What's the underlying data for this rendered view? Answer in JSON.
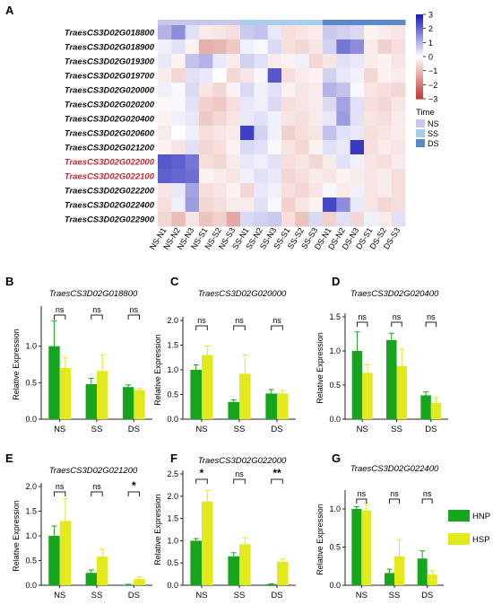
{
  "panel_labels": [
    "A",
    "B",
    "C",
    "D",
    "E",
    "F",
    "G"
  ],
  "chart_data": [
    {
      "type": "heatmap",
      "panel": "A",
      "rows": [
        "TraesCS3D02G018800",
        "TraesCS3D02G018900",
        "TraesCS3D02G019300",
        "TraesCS3D02G019700",
        "TraesCS3D02G020000",
        "TraesCS3D02G020200",
        "TraesCS3D02G020400",
        "TraesCS3D02G020600",
        "TraesCS3D02G021200",
        "TraesCS3D02G022000",
        "TraesCS3D02G022100",
        "TraesCS3D02G022200",
        "TraesCS3D02G022400",
        "TraesCS3D02G022900"
      ],
      "highlighted_rows": [
        "TraesCS3D02G022000",
        "TraesCS3D02G022100"
      ],
      "columns": [
        "NS-N1",
        "NS-N2",
        "NS-N3",
        "NS-S1",
        "NS-S2",
        "NS-S3",
        "SS-N1",
        "SS-N2",
        "SS-N3",
        "SS-S1",
        "SS-S2",
        "SS-S3",
        "DS-N1",
        "DS-N2",
        "DS-N3",
        "DS-S1",
        "DS-S2",
        "DS-S3"
      ],
      "column_groups": [
        "NS",
        "NS",
        "NS",
        "NS",
        "NS",
        "NS",
        "SS",
        "SS",
        "SS",
        "SS",
        "SS",
        "SS",
        "DS",
        "DS",
        "DS",
        "DS",
        "DS",
        "DS"
      ],
      "values": [
        [
          1.0,
          1.5,
          0.4,
          -0.3,
          -0.4,
          -0.5,
          0.7,
          0.8,
          0.3,
          -0.5,
          -0.4,
          -0.3,
          0.7,
          0.6,
          0.5,
          -0.2,
          -0.3,
          -0.4
        ],
        [
          0.2,
          0.4,
          -0.2,
          -1.2,
          -1.1,
          -0.8,
          0.2,
          0.1,
          0.5,
          -0.5,
          -0.6,
          -0.4,
          0.6,
          1.8,
          1.5,
          -0.3,
          -0.7,
          -0.5
        ],
        [
          0.3,
          -0.2,
          0.8,
          1.0,
          0.3,
          -0.3,
          0.6,
          0.4,
          -0.3,
          -0.2,
          0.2,
          -0.6,
          -0.4,
          0.4,
          0.3,
          -0.3,
          -0.2,
          -0.4
        ],
        [
          -0.3,
          -0.6,
          0.4,
          0.3,
          0.0,
          -0.6,
          -0.4,
          0.1,
          2.2,
          -0.5,
          -0.3,
          -0.2,
          0.6,
          0.3,
          0.2,
          -0.6,
          -0.2,
          -0.3
        ],
        [
          0.2,
          0.1,
          0.5,
          -0.4,
          -0.6,
          -0.2,
          0.5,
          0.2,
          0.4,
          -0.2,
          -0.4,
          -0.3,
          1.0,
          0.8,
          0.1,
          -0.4,
          -0.5,
          -0.6
        ],
        [
          -0.1,
          0.1,
          0.4,
          -0.7,
          -0.8,
          -0.5,
          0.3,
          0.2,
          0.5,
          -0.5,
          -0.4,
          -0.3,
          0.5,
          1.2,
          0.4,
          -0.5,
          -0.6,
          -0.4
        ],
        [
          -0.2,
          0.2,
          0.3,
          -0.8,
          -0.6,
          -0.4,
          0.3,
          0.4,
          0.2,
          -0.4,
          -0.5,
          -0.3,
          0.3,
          1.3,
          0.4,
          -0.4,
          -0.5,
          -0.3
        ],
        [
          -0.3,
          0.0,
          0.2,
          -0.5,
          -0.4,
          -0.3,
          2.5,
          0.6,
          0.2,
          -0.7,
          -0.5,
          -0.4,
          0.8,
          0.4,
          0.3,
          -0.5,
          -0.4,
          -0.3
        ],
        [
          -0.2,
          -0.4,
          0.4,
          -0.6,
          -0.5,
          -0.2,
          0.5,
          0.4,
          0.1,
          -0.4,
          -0.6,
          -0.2,
          0.4,
          0.3,
          2.6,
          -0.5,
          -0.3,
          -0.4
        ],
        [
          2.2,
          2.1,
          1.8,
          -0.5,
          -0.6,
          -0.3,
          0.3,
          0.2,
          0.4,
          -0.5,
          -0.4,
          -0.6,
          -0.3,
          0.4,
          0.2,
          -0.4,
          -0.5,
          -0.3
        ],
        [
          2.1,
          2.0,
          1.9,
          -0.2,
          -0.3,
          -0.4,
          0.2,
          0.4,
          0.3,
          -0.6,
          -0.5,
          -0.3,
          -0.4,
          -0.2,
          -0.3,
          -0.4,
          -0.3,
          -0.5
        ],
        [
          -0.4,
          0.3,
          1.2,
          -0.5,
          -0.4,
          -0.2,
          -0.6,
          0.3,
          0.2,
          -0.5,
          -0.6,
          -0.4,
          0.1,
          -0.3,
          0.2,
          -0.4,
          -0.3,
          -0.5
        ],
        [
          -0.5,
          0.2,
          1.3,
          -0.6,
          -0.5,
          -0.3,
          -0.3,
          0.4,
          0.1,
          -0.7,
          -0.4,
          -0.2,
          2.4,
          1.5,
          0.3,
          -0.4,
          -0.6,
          -0.5
        ],
        [
          -0.6,
          -1.0,
          -0.4,
          -0.9,
          -0.7,
          -1.3,
          0.5,
          0.6,
          0.7,
          -0.5,
          -0.9,
          0.5,
          -0.7,
          0.4,
          -0.6,
          0.2,
          -0.3,
          0.4
        ]
      ],
      "scale": {
        "min": -3,
        "max": 3,
        "ticks": [
          "3",
          "2",
          "1",
          "0",
          "−1",
          "−2",
          "−3"
        ]
      },
      "colors": {
        "high": "#1a1ab8",
        "mid": "#ffffff",
        "low": "#c0392b"
      },
      "time_legend": {
        "title": "Time",
        "entries": [
          {
            "name": "NS",
            "color": "#c8c8ee"
          },
          {
            "name": "SS",
            "color": "#a8cceb"
          },
          {
            "name": "DS",
            "color": "#5a88c8"
          }
        ]
      }
    },
    {
      "type": "bar",
      "panel": "B",
      "title": "TraesCS3D02G018800",
      "categories": [
        "NS",
        "SS",
        "DS"
      ],
      "ylabel": "Relative Expression",
      "ylim": [
        0,
        1.5
      ],
      "yticks": [
        "0.0",
        "0.5",
        "1.0"
      ],
      "series": [
        {
          "name": "HNP",
          "values": [
            1.0,
            0.48,
            0.44
          ],
          "errors": [
            0.35,
            0.08,
            0.03
          ]
        },
        {
          "name": "HSP",
          "values": [
            0.7,
            0.66,
            0.4
          ],
          "errors": [
            0.14,
            0.22,
            0.02
          ]
        }
      ],
      "significance": [
        "ns",
        "ns",
        "ns"
      ]
    },
    {
      "type": "bar",
      "panel": "C",
      "title": "TraesCS3D02G020000",
      "categories": [
        "NS",
        "SS",
        "DS"
      ],
      "ylabel": "Relative Expression",
      "ylim": [
        0,
        2.0
      ],
      "yticks": [
        "0.0",
        "0.5",
        "1.0",
        "1.5",
        "2.0"
      ],
      "series": [
        {
          "name": "HNP",
          "values": [
            1.0,
            0.35,
            0.52
          ],
          "errors": [
            0.1,
            0.04,
            0.08
          ]
        },
        {
          "name": "HSP",
          "values": [
            1.3,
            0.92,
            0.52
          ],
          "errors": [
            0.18,
            0.38,
            0.06
          ]
        }
      ],
      "significance": [
        "ns",
        "ns",
        "ns"
      ]
    },
    {
      "type": "bar",
      "panel": "D",
      "title": "TraesCS3D02G020400",
      "categories": [
        "NS",
        "SS",
        "DS"
      ],
      "ylabel": "Relative Expression",
      "ylim": [
        0,
        1.5
      ],
      "yticks": [
        "0.0",
        "0.5",
        "1.0",
        "1.5"
      ],
      "series": [
        {
          "name": "HNP",
          "values": [
            1.0,
            1.16,
            0.35
          ],
          "errors": [
            0.28,
            0.1,
            0.05
          ]
        },
        {
          "name": "HSP",
          "values": [
            0.68,
            0.78,
            0.24
          ],
          "errors": [
            0.12,
            0.25,
            0.08
          ]
        }
      ],
      "significance": [
        "ns",
        "ns",
        "ns"
      ]
    },
    {
      "type": "bar",
      "panel": "E",
      "title": "TraesCS3D02G021200",
      "categories": [
        "NS",
        "SS",
        "DS"
      ],
      "ylabel": "Relative Expression",
      "ylim": [
        0,
        2.0
      ],
      "yticks": [
        "0.0",
        "0.5",
        "1.0",
        "1.5",
        "2.0"
      ],
      "series": [
        {
          "name": "HNP",
          "values": [
            1.0,
            0.25,
            0.01
          ],
          "errors": [
            0.2,
            0.06,
            0.01
          ]
        },
        {
          "name": "HSP",
          "values": [
            1.3,
            0.58,
            0.13
          ],
          "errors": [
            0.45,
            0.15,
            0.04
          ]
        }
      ],
      "significance": [
        "ns",
        "ns",
        "*"
      ]
    },
    {
      "type": "bar",
      "panel": "F",
      "title": "TraesCS3D02G022000",
      "categories": [
        "NS",
        "SS",
        "DS"
      ],
      "ylabel": "Relative Expression",
      "ylim": [
        0,
        2.5
      ],
      "yticks": [
        "0.0",
        "0.5",
        "1.0",
        "1.5",
        "2.0",
        "2.5"
      ],
      "series": [
        {
          "name": "HNP",
          "values": [
            1.0,
            0.65,
            0.02
          ],
          "errors": [
            0.05,
            0.08,
            0.01
          ]
        },
        {
          "name": "HSP",
          "values": [
            1.88,
            0.92,
            0.53
          ],
          "errors": [
            0.25,
            0.15,
            0.06
          ]
        }
      ],
      "significance": [
        "*",
        "ns",
        "**"
      ]
    },
    {
      "type": "bar",
      "panel": "G",
      "title": "TraesCS3D02G022400",
      "categories": [
        "NS",
        "SS",
        "DS"
      ],
      "ylabel": "Relative Expression",
      "ylim": [
        0,
        1.2
      ],
      "yticks": [
        "0.0",
        "0.5",
        "1.0"
      ],
      "series": [
        {
          "name": "HNP",
          "values": [
            1.0,
            0.16,
            0.35
          ],
          "errors": [
            0.03,
            0.05,
            0.1
          ]
        },
        {
          "name": "HSP",
          "values": [
            0.98,
            0.38,
            0.14
          ],
          "errors": [
            0.09,
            0.22,
            0.05
          ]
        }
      ],
      "significance": [
        "ns",
        "ns",
        "ns"
      ]
    }
  ],
  "legend": {
    "entries": [
      {
        "name": "HNP",
        "color": "#16a51d"
      },
      {
        "name": "HSP",
        "color": "#e3e91a"
      }
    ]
  }
}
